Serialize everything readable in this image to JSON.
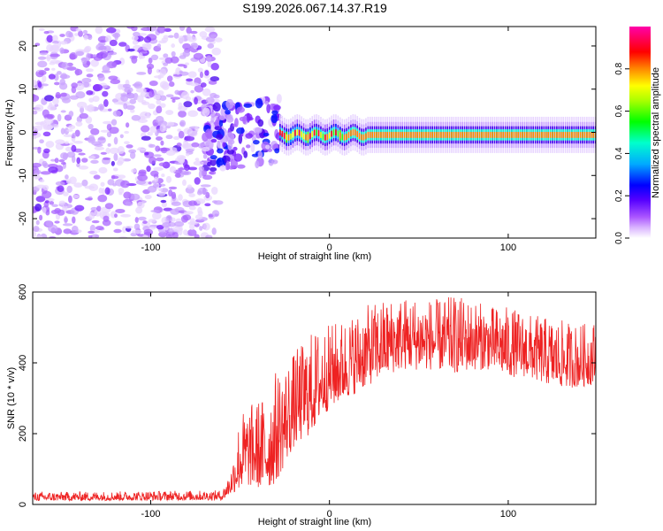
{
  "figure_title": "S199.2026.067.14.37.R19",
  "chart_data": [
    {
      "type": "heatmap",
      "title": "S199.2026.067.14.37.R19",
      "xlabel": "Height of straight line (km)",
      "ylabel": "Frequency (Hz)",
      "xlim": [
        -166,
        149
      ],
      "ylim": [
        -24.5,
        24.5
      ],
      "xticks": [
        -100,
        0,
        100
      ],
      "xtick_labels": [
        "-100",
        "0",
        "100"
      ],
      "yticks": [
        -20,
        -10,
        0,
        10,
        20
      ],
      "ytick_labels": [
        "-20",
        "-10",
        "0",
        "10",
        "20"
      ],
      "colorbar": {
        "label": "Normalized spectral amplitude",
        "range": [
          0,
          1
        ],
        "ticks": [
          0.0,
          0.2,
          0.4,
          0.6,
          0.8
        ],
        "tick_labels": [
          "0.0",
          "0.2",
          "0.4",
          "0.6",
          "0.8"
        ],
        "colors": [
          "#ffffff",
          "#aa55ff",
          "#5500ff",
          "#0000ff",
          "#00ffff",
          "#00ff00",
          "#ffff00",
          "#ff0000",
          "#ff00ff"
        ]
      },
      "description_regions": [
        {
          "x_range": [
            -166,
            -65
          ],
          "freq_range": [
            -24.5,
            24.5
          ],
          "amplitude": "low, noisy (0.0-0.2)"
        },
        {
          "x_range": [
            -70,
            -30
          ],
          "freq_range": [
            -8,
            6
          ],
          "amplitude": "scattered 0.1-0.4"
        },
        {
          "x_range": [
            -30,
            149
          ],
          "freq_range": [
            -1.5,
            1.5
          ],
          "amplitude": "narrow band, 0.5-0.9"
        }
      ]
    },
    {
      "type": "line",
      "xlabel": "Height of straight line (km)",
      "ylabel": "SNR (10 * v/v)",
      "xlim": [
        -166,
        149
      ],
      "ylim": [
        0,
        600
      ],
      "xticks": [
        -100,
        0,
        100
      ],
      "xtick_labels": [
        "-100",
        "0",
        "100"
      ],
      "yticks": [
        0,
        200,
        400,
        600
      ],
      "ytick_labels": [
        "0",
        "200",
        "400",
        "600"
      ],
      "series": [
        {
          "name": "SNR",
          "color": "#ee2222",
          "envelope_x": [
            -166,
            -60,
            -55,
            -50,
            -45,
            -40,
            -35,
            -30,
            -25,
            -20,
            -15,
            -10,
            -5,
            0,
            10,
            20,
            30,
            40,
            50,
            60,
            70,
            80,
            90,
            100,
            110,
            120,
            130,
            140,
            149
          ],
          "envelope_low": [
            10,
            12,
            30,
            40,
            50,
            45,
            40,
            60,
            110,
            160,
            180,
            200,
            240,
            270,
            300,
            330,
            360,
            380,
            380,
            380,
            370,
            380,
            380,
            360,
            360,
            340,
            330,
            330,
            340
          ],
          "envelope_high": [
            35,
            40,
            100,
            260,
            280,
            300,
            310,
            380,
            400,
            430,
            460,
            490,
            500,
            510,
            530,
            560,
            580,
            590,
            590,
            580,
            590,
            580,
            560,
            560,
            540,
            530,
            520,
            510,
            520
          ]
        }
      ]
    }
  ]
}
